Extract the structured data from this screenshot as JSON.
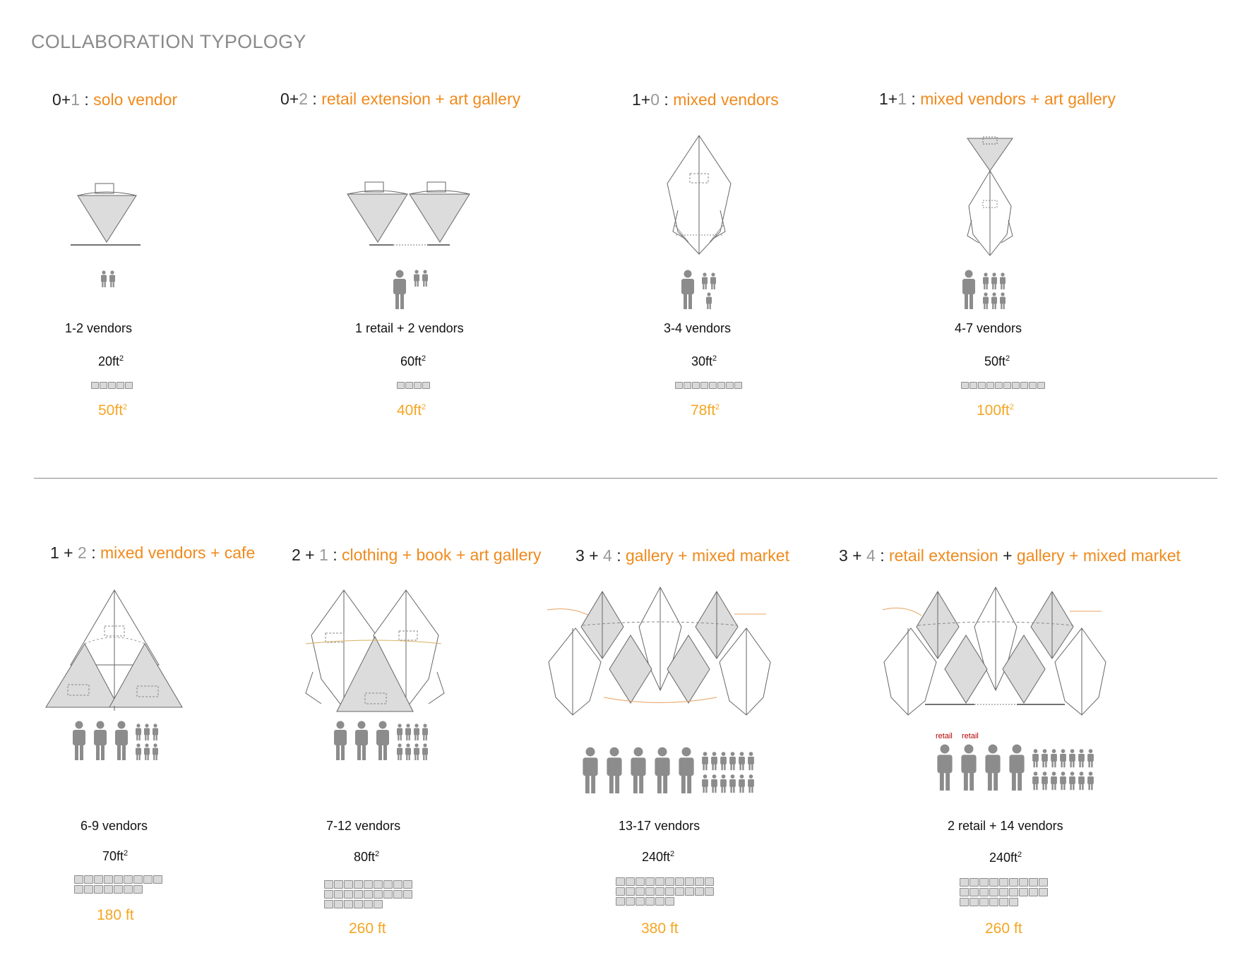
{
  "title": "COLLABORATION TYPOLOGY",
  "colors": {
    "orange": "#f08a1c",
    "total_orange": "#f5a623",
    "grey": "#999999",
    "dark": "#222222",
    "retail_red": "#b40000",
    "person_grey": "#8c8c8c"
  },
  "cells": [
    {
      "key": "c1",
      "h_a": "0+",
      "h_b": "1",
      "h_sep": " : ",
      "h_c": "solo vendor",
      "vendors": "1-2 vendors",
      "area": "20ft",
      "area_sup": "2",
      "total": "50ft",
      "total_sup": "2"
    },
    {
      "key": "c2",
      "h_a": "0+",
      "h_b": "2",
      "h_sep": " : ",
      "h_c": "retail extension + art gallery",
      "vendors": "1 retail + 2 vendors",
      "area": "60ft",
      "area_sup": "2",
      "total": "40ft",
      "total_sup": "2"
    },
    {
      "key": "c3",
      "h_a": "1+",
      "h_b": "0",
      "h_sep": " : ",
      "h_c": "mixed vendors",
      "vendors": "3-4 vendors",
      "area": "30ft",
      "area_sup": "2",
      "total": "78ft",
      "total_sup": "2"
    },
    {
      "key": "c4",
      "h_a": "1+",
      "h_b": "1",
      "h_sep": " : ",
      "h_c": "mixed vendors + art gallery",
      "vendors": "4-7 vendors",
      "area": "50ft",
      "area_sup": "2",
      "total": "100ft",
      "total_sup": "2"
    },
    {
      "key": "c5",
      "h_a": "1 + ",
      "h_b": "2",
      "h_sep": " : ",
      "h_c": "mixed vendors + cafe",
      "vendors": "6-9 vendors",
      "area": "70ft",
      "area_sup": "2",
      "total": "180 ft"
    },
    {
      "key": "c6",
      "h_a": "2 + ",
      "h_b": "1",
      "h_sep": " : ",
      "h_c": "clothing + book + art gallery",
      "vendors": "7-12 vendors",
      "area": "80ft",
      "area_sup": "2",
      "total": "260 ft"
    },
    {
      "key": "c7",
      "h_a": "3 + ",
      "h_b": "4",
      "h_sep": " : ",
      "h_c": "gallery + mixed market",
      "vendors": "13-17 vendors",
      "area": "240ft",
      "area_sup": "2",
      "total": "380 ft"
    },
    {
      "key": "c8",
      "h_a": "3 + ",
      "h_b": "4",
      "h_sep": " : ",
      "h_c": "retail extension",
      "h_plus": " + ",
      "h_c2": "gallery + mixed market",
      "vendors": "2 retail + 14 vendors",
      "area": "240ft",
      "area_sup": "2",
      "total": "260 ft",
      "retail_labels": [
        "retail",
        "retail"
      ]
    }
  ]
}
